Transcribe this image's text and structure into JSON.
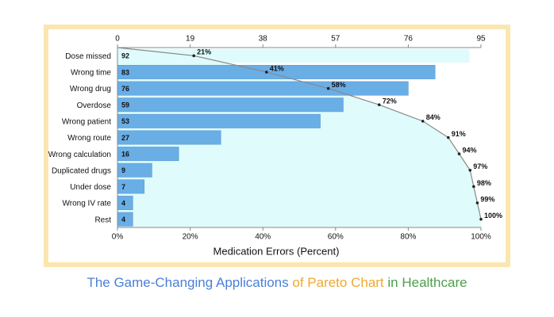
{
  "chart_data": {
    "type": "pareto",
    "categories": [
      "Dose missed",
      "Wrong time",
      "Wrong drug",
      "Overdose",
      "Wrong patient",
      "Wrong route",
      "Wrong calculation",
      "Duplicated drugs",
      "Under dose",
      "Wrong IV rate",
      "Rest"
    ],
    "values": [
      92,
      83,
      76,
      59,
      53,
      27,
      16,
      9,
      7,
      4,
      4
    ],
    "colors": [
      "#dffbfb",
      "#6aaee6",
      "#6aaee6",
      "#6aaee6",
      "#6aaee6",
      "#6aaee6",
      "#6aaee6",
      "#6aaee6",
      "#6aaee6",
      "#6aaee6",
      "#6aaee6"
    ],
    "cumulative": {
      "values": [
        21,
        41,
        58,
        72,
        84,
        91,
        94,
        97,
        98,
        99,
        100
      ],
      "value_labels": [
        "21%",
        "41%",
        "58%",
        "72%",
        "84%",
        "91%",
        "94%",
        "97%",
        "98%",
        "99%",
        "100%"
      ],
      "color": "#888888",
      "fill": "#dffbfb"
    },
    "xlim": [
      0,
      95
    ],
    "xticks": [
      0,
      19,
      38,
      57,
      76,
      95
    ],
    "x2lim": [
      0,
      100
    ],
    "x2ticks": [
      {
        "value": 0,
        "label": "0%"
      },
      {
        "value": 20,
        "label": "20%"
      },
      {
        "value": 40,
        "label": "40%"
      },
      {
        "value": 60,
        "label": "60%"
      },
      {
        "value": 80,
        "label": "80%"
      },
      {
        "value": 100,
        "label": "100%"
      }
    ],
    "xlabel": "Medication Errors (Percent)",
    "caption": [
      {
        "text": "The Game-Changing Applications",
        "color": "#4a7fd8"
      },
      {
        "text": "of Pareto Chart",
        "color": "#f0a830"
      },
      {
        "text": "in Healthcare",
        "color": "#4aa04a"
      }
    ]
  }
}
